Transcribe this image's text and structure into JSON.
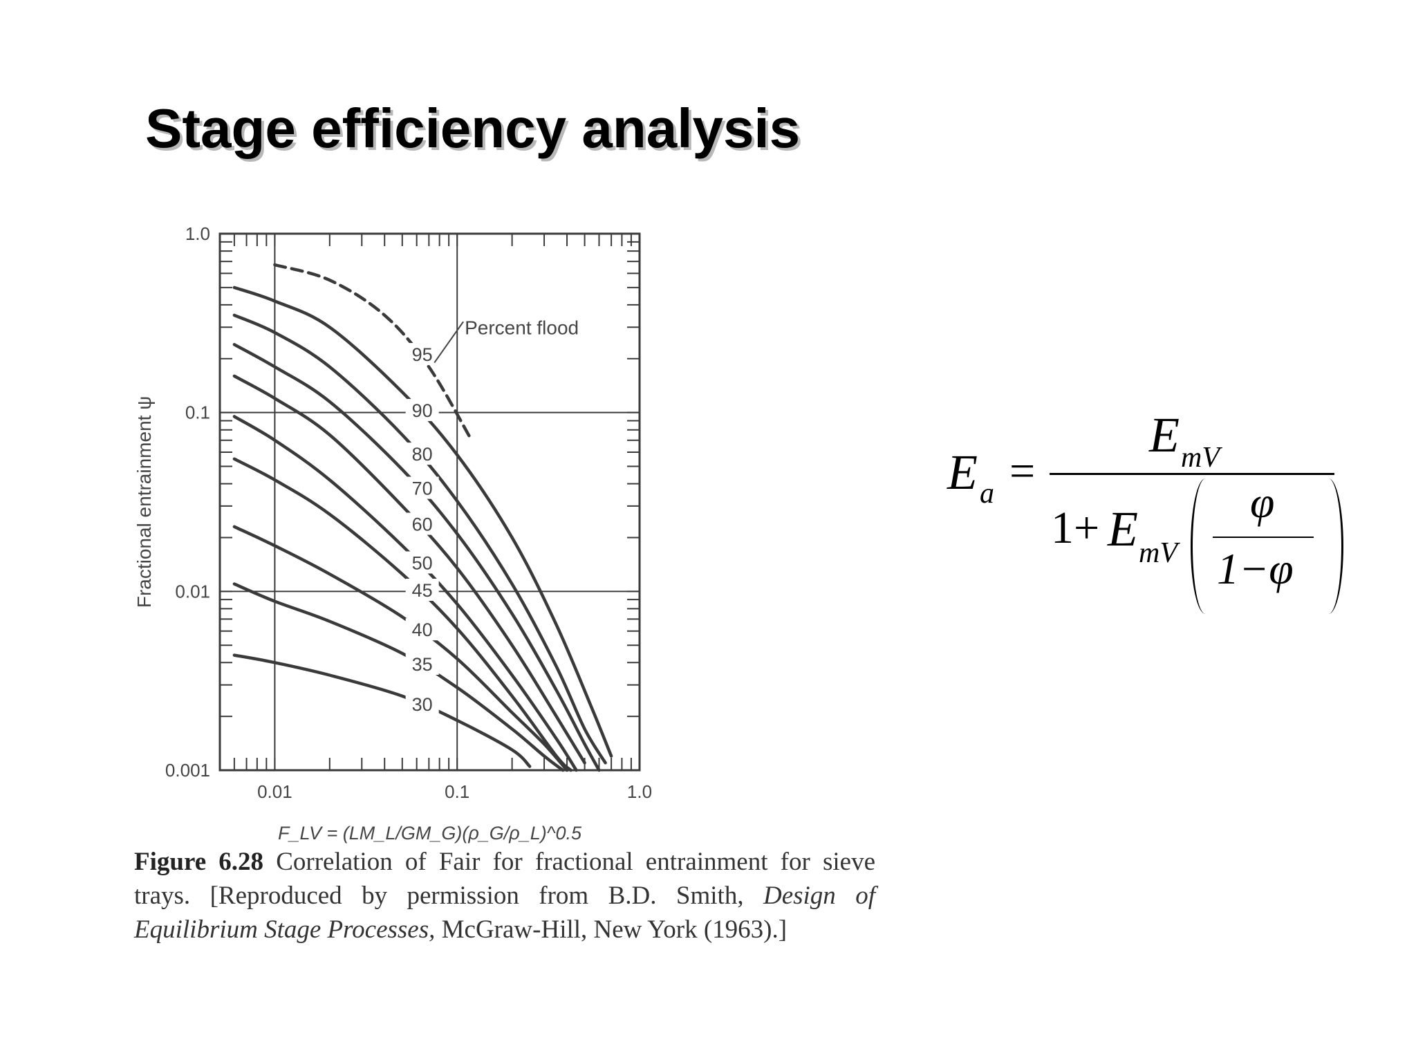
{
  "slide": {
    "title": "Stage efficiency analysis"
  },
  "chart_data": {
    "type": "line",
    "x_scale": "log",
    "y_scale": "log",
    "xlim": [
      0.005,
      1.0
    ],
    "ylim": [
      0.001,
      1.0
    ],
    "x_ticks": [
      "0.01",
      "0.1",
      "1.0"
    ],
    "y_ticks": [
      "1.0",
      "0.1",
      "0.01",
      "0.001"
    ],
    "xlabel": "F_LV = (LM_L/GM_G)(ρ_G/ρ_L)^0.5",
    "ylabel": "Fractional entrainment ψ",
    "grid": "major decades",
    "annotation": "Percent flood",
    "series": [
      {
        "name": "95",
        "x": [
          0.01,
          0.02,
          0.04,
          0.07,
          0.12
        ],
        "y": [
          0.67,
          0.55,
          0.35,
          0.18,
          0.07
        ]
      },
      {
        "name": "90",
        "x": [
          0.006,
          0.01,
          0.02,
          0.05,
          0.1,
          0.2,
          0.35,
          0.55,
          0.7
        ],
        "y": [
          0.5,
          0.42,
          0.3,
          0.13,
          0.058,
          0.02,
          0.0065,
          0.0022,
          0.0012
        ]
      },
      {
        "name": "80",
        "x": [
          0.006,
          0.01,
          0.02,
          0.05,
          0.1,
          0.2,
          0.35,
          0.5,
          0.65
        ],
        "y": [
          0.35,
          0.28,
          0.18,
          0.075,
          0.032,
          0.011,
          0.0038,
          0.0017,
          0.0011
        ]
      },
      {
        "name": "70",
        "x": [
          0.006,
          0.01,
          0.02,
          0.05,
          0.1,
          0.2,
          0.35,
          0.5,
          0.6
        ],
        "y": [
          0.24,
          0.18,
          0.115,
          0.048,
          0.021,
          0.0075,
          0.0028,
          0.0014,
          0.001
        ]
      },
      {
        "name": "60",
        "x": [
          0.006,
          0.01,
          0.02,
          0.05,
          0.1,
          0.2,
          0.35,
          0.5
        ],
        "y": [
          0.16,
          0.12,
          0.075,
          0.03,
          0.0135,
          0.005,
          0.002,
          0.0011
        ]
      },
      {
        "name": "50",
        "x": [
          0.006,
          0.01,
          0.02,
          0.05,
          0.1,
          0.2,
          0.35,
          0.45
        ],
        "y": [
          0.095,
          0.07,
          0.042,
          0.018,
          0.0085,
          0.0034,
          0.0015,
          0.001
        ]
      },
      {
        "name": "45",
        "x": [
          0.006,
          0.01,
          0.02,
          0.05,
          0.1,
          0.2,
          0.35,
          0.42
        ],
        "y": [
          0.055,
          0.042,
          0.027,
          0.0125,
          0.0062,
          0.0026,
          0.0012,
          0.001
        ]
      },
      {
        "name": "40",
        "x": [
          0.006,
          0.01,
          0.02,
          0.05,
          0.1,
          0.2,
          0.3,
          0.4
        ],
        "y": [
          0.023,
          0.018,
          0.0125,
          0.0072,
          0.0042,
          0.0021,
          0.0014,
          0.001
        ]
      },
      {
        "name": "35",
        "x": [
          0.006,
          0.01,
          0.02,
          0.05,
          0.1,
          0.2,
          0.3,
          0.38
        ],
        "y": [
          0.011,
          0.0088,
          0.0068,
          0.0045,
          0.0029,
          0.0017,
          0.0012,
          0.001
        ]
      },
      {
        "name": "30",
        "x": [
          0.006,
          0.01,
          0.02,
          0.05,
          0.1,
          0.2,
          0.25
        ],
        "y": [
          0.0044,
          0.004,
          0.0034,
          0.0026,
          0.0019,
          0.0013,
          0.00105
        ]
      }
    ]
  },
  "formula": {
    "lhs_letter": "E",
    "lhs_sub": "a",
    "equals": "=",
    "num_letter": "E",
    "num_sub": "mV",
    "den_one_plus": "1+",
    "den_letter": "E",
    "den_sub": "mV",
    "inner_num": "φ",
    "inner_den": "1−φ"
  },
  "caption": {
    "figure_label": "Figure 6.28",
    "text_a": "Correlation of Fair for fractional entrainment for sieve trays. [Reproduced by permission from B.D. Smith,",
    "book_title": "Design of Equilibrium Stage Processes,",
    "text_b": "McGraw-Hill, New York (1963).]"
  }
}
